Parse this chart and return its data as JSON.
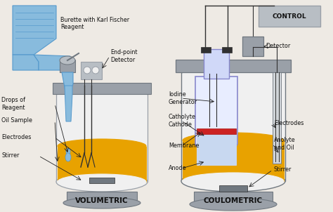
{
  "bg_color": "#eeeae4",
  "title_vol": "VOLUMETRIC",
  "title_coul": "COULOMETRIC",
  "control_label": "CONTROL",
  "gold": "#e8a200",
  "silver": "#9aa0a8",
  "silver2": "#707880",
  "silver3": "#b8bec4",
  "white_vessel": "#f0f0f0",
  "blue_light": "#88bbdd",
  "blue_mid": "#5599cc",
  "purple": "#8888cc",
  "red_mem": "#cc2222",
  "dark": "#303030",
  "gray_text": "#888888",
  "label_fs": 5.8,
  "title_fs": 7.5
}
